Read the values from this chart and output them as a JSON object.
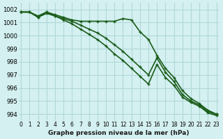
{
  "title": "Graphe pression niveau de la mer (hPa)",
  "background_color": "#d4f0f0",
  "grid_color": "#b0d8d8",
  "line_color": "#1a5c1a",
  "line_color2": "#1a5c1a",
  "xlim": [
    0,
    23
  ],
  "ylim": [
    993.5,
    1002.5
  ],
  "yticks": [
    994,
    995,
    996,
    997,
    998,
    999,
    1000,
    1001,
    1002
  ],
  "xticks": [
    0,
    1,
    2,
    3,
    4,
    5,
    6,
    7,
    8,
    9,
    10,
    11,
    12,
    13,
    14,
    15,
    16,
    17,
    18,
    19,
    20,
    21,
    22,
    23
  ],
  "series1": [
    1001.8,
    1001.8,
    1001.5,
    1001.8,
    1001.6,
    1001.4,
    1001.2,
    1001.1,
    1001.1,
    1001.1,
    1001.1,
    1001.1,
    1001.3,
    1001.2,
    1000.3,
    999.7,
    998.5,
    997.5,
    996.8,
    995.8,
    995.2,
    994.8,
    994.3,
    994.0
  ],
  "series2": [
    1001.8,
    1001.8,
    1001.4,
    1001.8,
    1001.5,
    1001.3,
    1001.1,
    1000.8,
    1000.5,
    1000.2,
    999.8,
    999.3,
    998.8,
    998.2,
    997.6,
    997.0,
    998.3,
    997.2,
    996.5,
    995.5,
    995.0,
    994.7,
    994.2,
    994.0
  ],
  "series3": [
    1001.8,
    1001.8,
    1001.4,
    1001.7,
    1001.5,
    1001.2,
    1000.9,
    1000.5,
    1000.1,
    999.7,
    999.2,
    998.6,
    998.1,
    997.5,
    996.9,
    996.3,
    997.8,
    996.8,
    996.2,
    995.3,
    994.9,
    994.6,
    994.1,
    993.9
  ]
}
